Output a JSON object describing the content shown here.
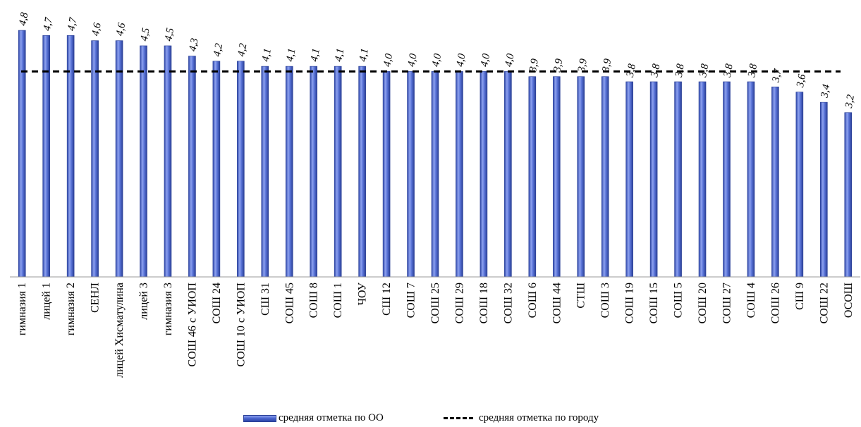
{
  "chart_data": {
    "type": "bar",
    "categories": [
      "гимназия 1",
      "лицей 1",
      "гимназия 2",
      "СЕНЛ",
      "лицей Хисматулина",
      "лицей 3",
      "гимназия 3",
      "СОШ 46 с УИОП",
      "СОШ 24",
      "СОШ 10 с УИОП",
      "СШ 31",
      "СОШ 45",
      "СОШ 8",
      "СОШ 1",
      "ЧОУ",
      "СШ 12",
      "СОШ 7",
      "СОШ 25",
      "СОШ 29",
      "СОШ 18",
      "СОШ 32",
      "СОШ 6",
      "СОШ 44",
      "СТШ",
      "СОШ 3",
      "СОШ 19",
      "СОШ 15",
      "СОШ 5",
      "СОШ 20",
      "СОШ 27",
      "СОШ 4",
      "СОШ 26",
      "СШ 9",
      "СОШ 22",
      "ОСОШ"
    ],
    "values": [
      4.8,
      4.7,
      4.7,
      4.6,
      4.6,
      4.5,
      4.5,
      4.3,
      4.2,
      4.2,
      4.1,
      4.1,
      4.1,
      4.1,
      4.1,
      4.0,
      4.0,
      4.0,
      4.0,
      4.0,
      4.0,
      3.9,
      3.9,
      3.9,
      3.9,
      3.8,
      3.8,
      3.8,
      3.8,
      3.8,
      3.8,
      3.7,
      3.6,
      3.4,
      3.2
    ],
    "value_labels": [
      "4,8",
      "4,7",
      "4,7",
      "4,6",
      "4,6",
      "4,5",
      "4,5",
      "4,3",
      "4,2",
      "4,2",
      "4,1",
      "4,1",
      "4,1",
      "4,1",
      "4,1",
      "4,0",
      "4,0",
      "4,0",
      "4,0",
      "4,0",
      "4,0",
      "3,9",
      "3,9",
      "3,9",
      "3,9",
      "3,8",
      "3,8",
      "3,8",
      "3,8",
      "3,8",
      "3,8",
      "3,7",
      "3,6",
      "3,4",
      "3,2"
    ],
    "city_average": 4.0,
    "ylim": [
      0,
      5
    ],
    "series": [
      {
        "name": "средняя отметка по ОО",
        "color": "#4b66cf"
      },
      {
        "name": "средняя отметка по городу",
        "color": "#000000"
      }
    ],
    "legend_position": "bottom",
    "grid": false
  }
}
